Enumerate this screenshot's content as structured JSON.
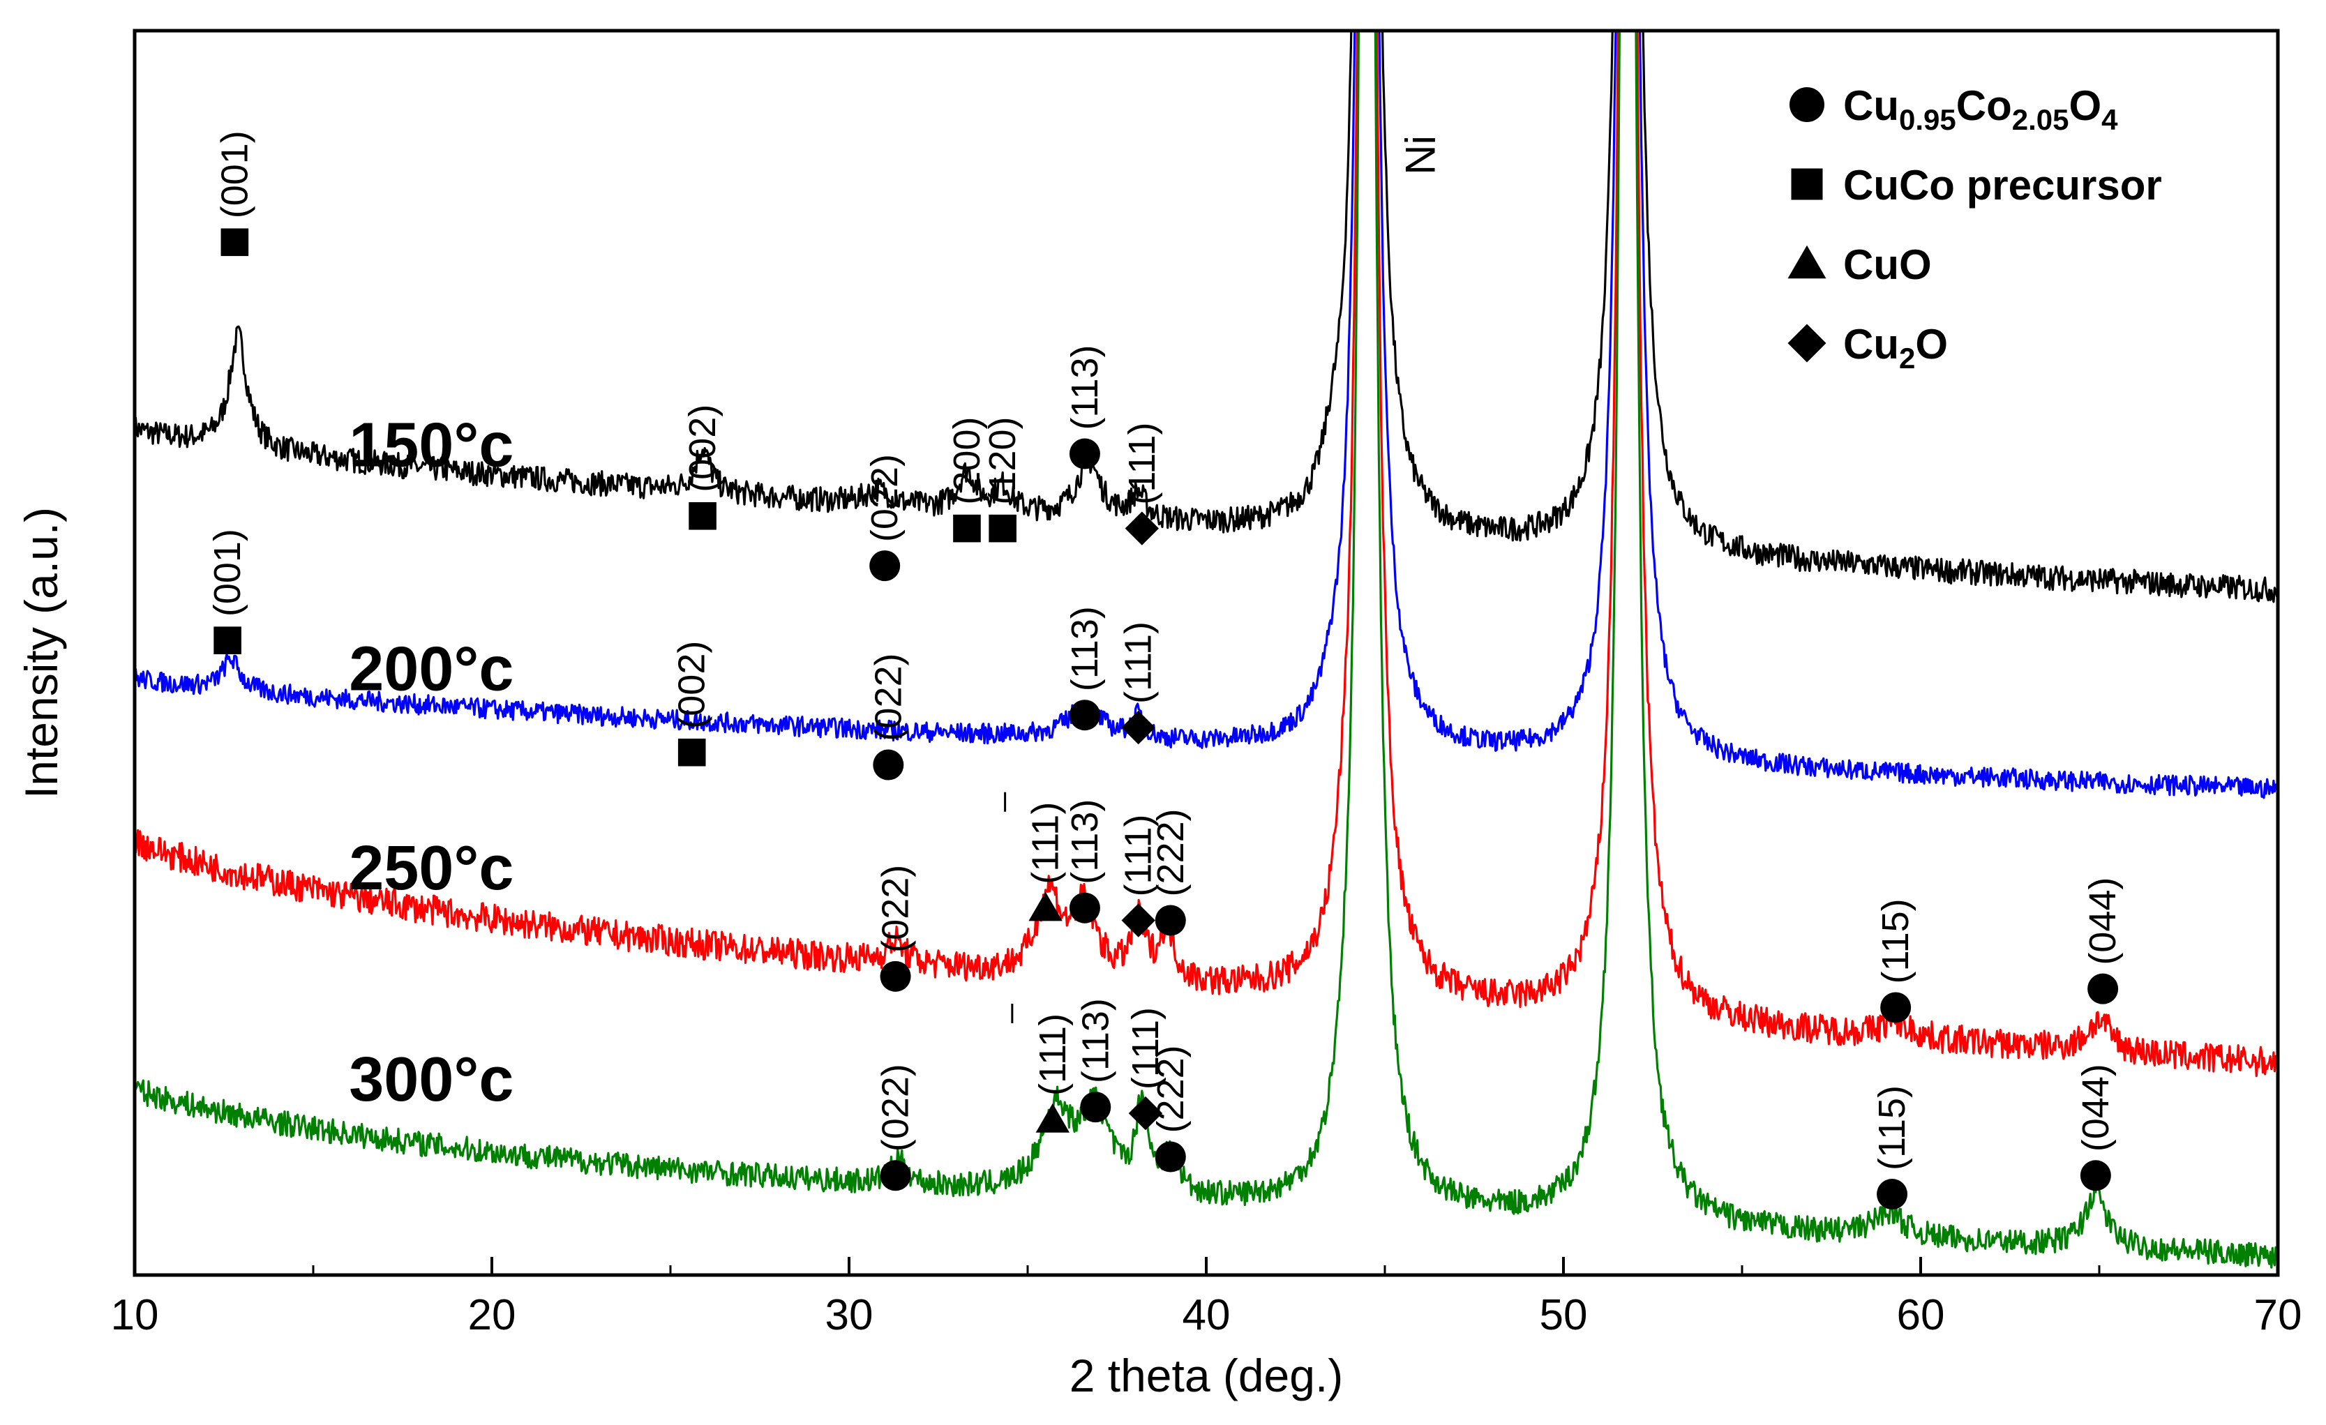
{
  "chart_data": {
    "type": "line",
    "title": "",
    "xlabel": "2 theta (deg.)",
    "ylabel": "Intensity (a.u.)",
    "xlim": [
      10,
      70
    ],
    "ylim": [
      0,
      100
    ],
    "xticks": [
      10,
      20,
      30,
      40,
      50,
      60,
      70
    ],
    "xtick_labels": [
      "10",
      "20",
      "30",
      "40",
      "50",
      "60",
      "70"
    ],
    "grid": false,
    "legend_position": "top-right",
    "legend": [
      {
        "marker": "circle",
        "label_main": "Cu",
        "sub1": "0.95",
        "mid": "Co",
        "sub2": "2.05",
        "end": "O",
        "sub3": "4"
      },
      {
        "marker": "square",
        "label_main": "CuCo precursor"
      },
      {
        "marker": "triangle",
        "label_main": "CuO"
      },
      {
        "marker": "diamond",
        "label_main": "Cu",
        "sub1": "2",
        "end": "O"
      }
    ],
    "phase_annotation": {
      "text": "Ni",
      "x": 46.4,
      "y": 90
    },
    "ni_peaks": [
      44.5,
      51.8
    ],
    "series": [
      {
        "name": "150°c",
        "color": "#000000",
        "baseline_start": 68,
        "baseline_end": 55,
        "noise": 1.0,
        "label": {
          "text": "150°c",
          "x": 16.0,
          "y": 65
        },
        "peaks": [
          [
            12.9,
            9,
            0.3
          ],
          [
            25.9,
            3.5,
            0.25
          ],
          [
            30.8,
            1.2,
            0.4
          ],
          [
            33.3,
            3,
            0.3
          ],
          [
            34.3,
            2,
            0.3
          ],
          [
            36.7,
            4.5,
            0.4
          ],
          [
            38.1,
            2,
            0.25
          ],
          [
            43.5,
            2.5,
            0.3
          ]
        ],
        "annotations": [
          {
            "marker": "square",
            "hkl": "(001)",
            "x": 12.8,
            "y": 83
          },
          {
            "marker": "square",
            "hkl": "(002)",
            "x": 25.9,
            "y": 61
          },
          {
            "marker": "circle",
            "hkl": "(022)",
            "x": 31.0,
            "y": 57
          },
          {
            "marker": "square",
            "hkl": "(200)",
            "x": 33.3,
            "y": 60
          },
          {
            "marker": "square",
            "hkl": "(120)",
            "x": 34.3,
            "y": 60
          },
          {
            "marker": "circle",
            "hkl": "(113)",
            "x": 36.6,
            "y": 66
          },
          {
            "marker": "diamond",
            "hkl": "(111)",
            "x": 38.2,
            "y": 60
          }
        ]
      },
      {
        "name": "200°c",
        "color": "#0000ff",
        "baseline_start": 48,
        "baseline_end": 39,
        "noise": 0.8,
        "label": {
          "text": "200°c",
          "x": 16.0,
          "y": 47
        },
        "peaks": [
          [
            12.7,
            2.5,
            0.3
          ],
          [
            36.6,
            2.5,
            0.6
          ],
          [
            38.1,
            1.8,
            0.2
          ],
          [
            43.5,
            1.5,
            0.3
          ]
        ],
        "annotations": [
          {
            "marker": "square",
            "hkl": "(001)",
            "x": 12.6,
            "y": 51
          },
          {
            "marker": "square",
            "hkl": "(002)",
            "x": 25.6,
            "y": 42
          },
          {
            "marker": "circle",
            "hkl": "(022)",
            "x": 31.1,
            "y": 41
          },
          {
            "marker": "circle",
            "hkl": "(113)",
            "x": 36.6,
            "y": 45
          },
          {
            "marker": "diamond",
            "hkl": "(111)",
            "x": 38.1,
            "y": 44
          }
        ]
      },
      {
        "name": "250°c",
        "color": "#ff0000",
        "baseline_start": 32,
        "baseline_end": 17,
        "noise": 1.2,
        "label": {
          "text": "250°c",
          "x": 16.0,
          "y": 31
        },
        "peaks": [
          [
            31.3,
            1.8,
            0.3
          ],
          [
            35.6,
            6.5,
            0.4
          ],
          [
            36.6,
            5.5,
            0.4
          ],
          [
            38.1,
            4.5,
            0.25
          ],
          [
            38.9,
            4.2,
            0.25
          ],
          [
            43.8,
            3,
            0.3
          ],
          [
            59.3,
            1.2,
            0.5
          ],
          [
            65.0,
            2.5,
            0.4
          ]
        ],
        "annotations": [
          {
            "marker": "circle",
            "hkl": "(022)",
            "x": 31.3,
            "y": 24
          },
          {
            "marker": "triangle",
            "hkl": "(11̅1)",
            "hkl_plain": "(111)",
            "bar": true,
            "x": 35.5,
            "y": 29.5
          },
          {
            "marker": "circle",
            "hkl": "(113)",
            "x": 36.6,
            "y": 29.5
          },
          {
            "marker": "diamond",
            "hkl": "(111)",
            "x": 38.1,
            "y": 28.5
          },
          {
            "marker": "circle",
            "hkl": "(222)",
            "x": 39.0,
            "y": 28.5
          },
          {
            "marker": "circle",
            "hkl": "(115)",
            "x": 59.3,
            "y": 21.5
          },
          {
            "marker": "circle",
            "hkl": "(044)",
            "x": 65.1,
            "y": 23
          }
        ]
      },
      {
        "name": "300°c",
        "color": "#008000",
        "baseline_start": 12,
        "baseline_end": 1.5,
        "noise": 1.0,
        "label": {
          "text": "300°c",
          "x": 16.0,
          "y": 14
        },
        "peaks": [
          [
            31.4,
            1.8,
            0.3
          ],
          [
            35.8,
            6.5,
            0.5
          ],
          [
            36.9,
            6.5,
            0.5
          ],
          [
            38.2,
            7,
            0.2
          ],
          [
            39.0,
            3,
            0.3
          ],
          [
            43.8,
            3,
            0.3
          ],
          [
            59.1,
            2,
            0.5
          ],
          [
            64.9,
            4.5,
            0.35
          ]
        ],
        "annotations": [
          {
            "marker": "circle",
            "hkl": "(022)",
            "x": 31.3,
            "y": 8
          },
          {
            "marker": "triangle",
            "hkl": "(11̅1)",
            "hkl_plain": "(111)",
            "bar": true,
            "x": 35.7,
            "y": 12.5
          },
          {
            "marker": "circle",
            "hkl": "(113)",
            "x": 36.9,
            "y": 13.5
          },
          {
            "marker": "diamond",
            "hkl": "(111)",
            "x": 38.3,
            "y": 13.0
          },
          {
            "marker": "circle",
            "hkl": "(222)",
            "x": 39.0,
            "y": 9.5
          },
          {
            "marker": "circle",
            "hkl": "(115)",
            "x": 59.2,
            "y": 6.5
          },
          {
            "marker": "circle",
            "hkl": "(044)",
            "x": 64.9,
            "y": 8
          }
        ]
      }
    ]
  }
}
